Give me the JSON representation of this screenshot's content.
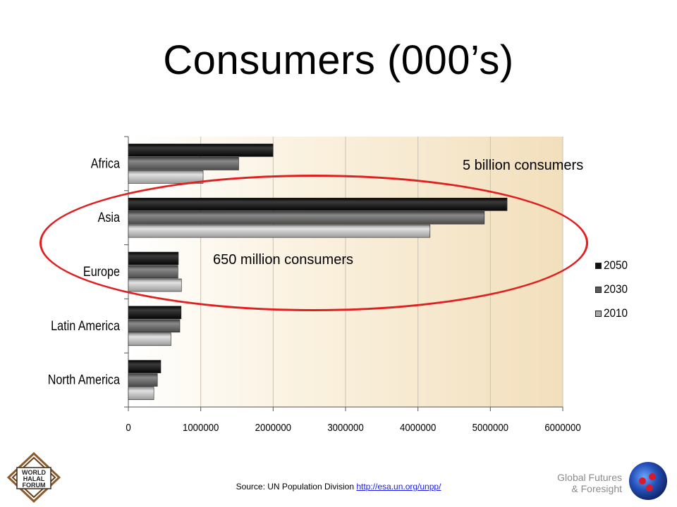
{
  "slide": {
    "title": "Consumers (000’s)",
    "annotations": {
      "five_billion": "5 billion consumers",
      "six_fifty_million": "650 million consumers"
    },
    "source_prefix": "Source: UN Population Division ",
    "source_link": "http://esa.un.org/unpp/",
    "footer_right_line1": "Global Futures",
    "footer_right_line2": "& Foresight",
    "logo_left_text": [
      "WORLD",
      "HALAL",
      "FORUM"
    ]
  },
  "chart_data": {
    "type": "bar",
    "orientation": "horizontal",
    "categories": [
      "Africa",
      "Asia",
      "Europe",
      "Latin America",
      "North America"
    ],
    "series": [
      {
        "name": "2050",
        "color": "#111111",
        "values": [
          1998000,
          5231000,
          691000,
          729000,
          448000
        ]
      },
      {
        "name": "2030",
        "color": "#5a5a5a",
        "values": [
          1524000,
          4917000,
          685000,
          711000,
          401000
        ]
      },
      {
        "name": "2010",
        "color": "#a8a8a8",
        "values": [
          1033000,
          4167000,
          733000,
          589000,
          352000
        ]
      }
    ],
    "xlim": [
      0,
      6000000
    ],
    "xticks": [
      "0",
      "1000000",
      "2000000",
      "3000000",
      "4000000",
      "5000000",
      "6000000"
    ],
    "legend_position": "right",
    "grid": true,
    "background": "#f5e7cc"
  }
}
